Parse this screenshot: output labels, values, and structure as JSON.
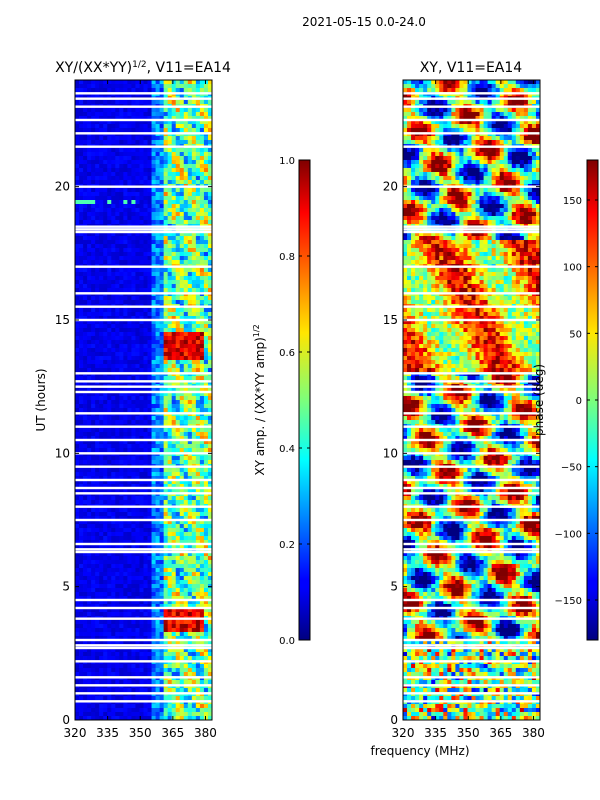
{
  "suptitle": "2021-05-15 0.0-24.0",
  "chart_data": [
    {
      "type": "heatmap",
      "title_base": "XY/(XX*YY)",
      "title_exp": "1/2",
      "title_suffix": ", V11=EA14",
      "xlabel": "",
      "ylabel": "UT (hours)",
      "xlim": [
        320,
        383
      ],
      "ylim": [
        0,
        24
      ],
      "xticks": [
        320,
        335,
        350,
        365,
        380
      ],
      "yticks": [
        0,
        5,
        10,
        15,
        20
      ],
      "colorbar": {
        "label_base": "XY amp. / (XX*YY amp)",
        "label_exp": "1/2",
        "range": [
          0.0,
          1.0
        ],
        "ticks": [
          "0.0",
          "0.2",
          "0.4",
          "0.6",
          "0.8",
          "1.0"
        ],
        "tick_values": [
          0.0,
          0.2,
          0.4,
          0.6,
          0.8,
          1.0
        ]
      },
      "bright_band_mhz": [
        360,
        383
      ],
      "peak_hours": [
        3.5,
        4.0,
        13.8,
        14.3
      ],
      "flagged_hours": [
        0.7,
        1.0,
        1.3,
        1.6,
        2.2,
        2.7,
        2.8,
        3.0,
        3.8,
        4.2,
        4.5,
        6.3,
        6.4,
        6.6,
        7.5,
        8.0,
        8.5,
        8.7,
        9.0,
        9.5,
        10.0,
        10.5,
        11.0,
        11.5,
        12.3,
        12.5,
        12.7,
        13.0,
        15.0,
        15.5,
        16.0,
        17.0,
        18.3,
        18.4,
        18.5,
        20.0,
        21.5,
        22.0,
        22.5,
        23.0,
        23.3,
        23.5
      ]
    },
    {
      "type": "heatmap",
      "title": "XY, V11=EA14",
      "xlabel": "frequency (MHz)",
      "ylabel": "",
      "xlim": [
        320,
        383
      ],
      "ylim": [
        0,
        24
      ],
      "xticks": [
        320,
        335,
        350,
        365,
        380
      ],
      "yticks": [
        0,
        5,
        10,
        15,
        20
      ],
      "colorbar": {
        "label": "phase (deg)",
        "range": [
          -180,
          180
        ],
        "ticks": [
          "150",
          "100",
          "50",
          "0",
          "−50",
          "−100",
          "−150"
        ],
        "tick_values": [
          150,
          100,
          50,
          0,
          -50,
          -100,
          -150
        ]
      },
      "flagged_hours": [
        0.7,
        1.0,
        1.3,
        1.6,
        2.2,
        2.7,
        2.8,
        3.0,
        3.8,
        4.2,
        4.5,
        6.3,
        6.4,
        6.6,
        7.5,
        8.0,
        8.5,
        8.7,
        9.0,
        9.5,
        10.0,
        10.5,
        11.0,
        11.5,
        12.3,
        12.5,
        12.7,
        13.0,
        15.0,
        15.5,
        16.0,
        17.0,
        18.3,
        18.4,
        18.5,
        20.0,
        21.5,
        22.0,
        22.5,
        23.0,
        23.3,
        23.5
      ]
    }
  ]
}
